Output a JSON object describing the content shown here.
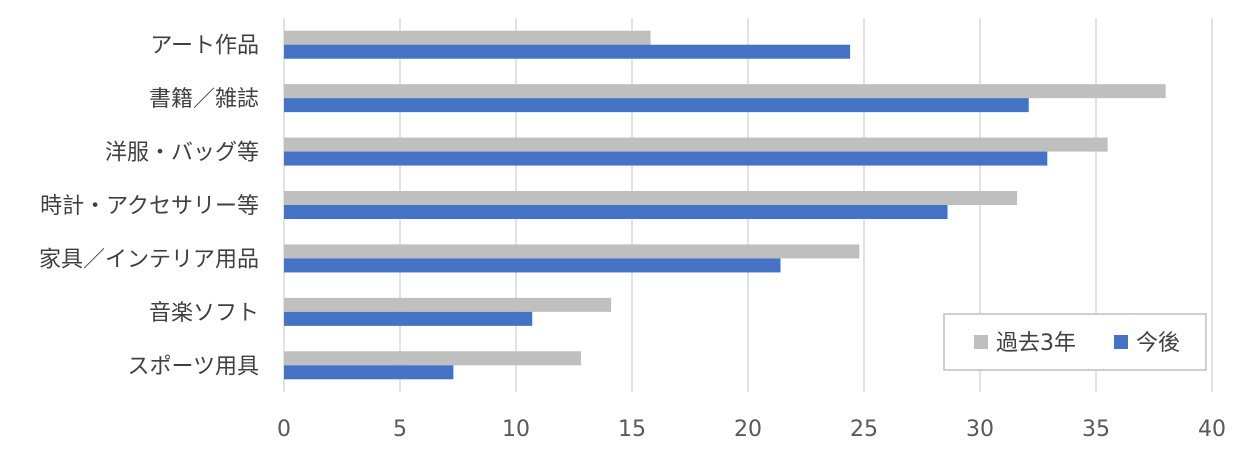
{
  "chart_data": {
    "type": "bar",
    "orientation": "horizontal",
    "categories": [
      "アート作品",
      "書籍／雑誌",
      "洋服・バッグ等",
      "時計・アクセサリー等",
      "家具／インテリア用品",
      "音楽ソフト",
      "スポーツ用具"
    ],
    "series": [
      {
        "name": "過去3年",
        "color": "#bfbfbf",
        "values": [
          15.8,
          38.0,
          35.5,
          31.6,
          24.8,
          14.1,
          12.8
        ]
      },
      {
        "name": "今後",
        "color": "#4472c4",
        "values": [
          24.4,
          32.1,
          32.9,
          28.6,
          21.4,
          10.7,
          7.3
        ]
      }
    ],
    "xlim": [
      0,
      40
    ],
    "xticks": [
      0,
      5,
      10,
      15,
      20,
      25,
      30,
      35,
      40
    ],
    "grid": true,
    "legend_position": "bottom-right",
    "title": "",
    "xlabel": "",
    "ylabel": ""
  }
}
